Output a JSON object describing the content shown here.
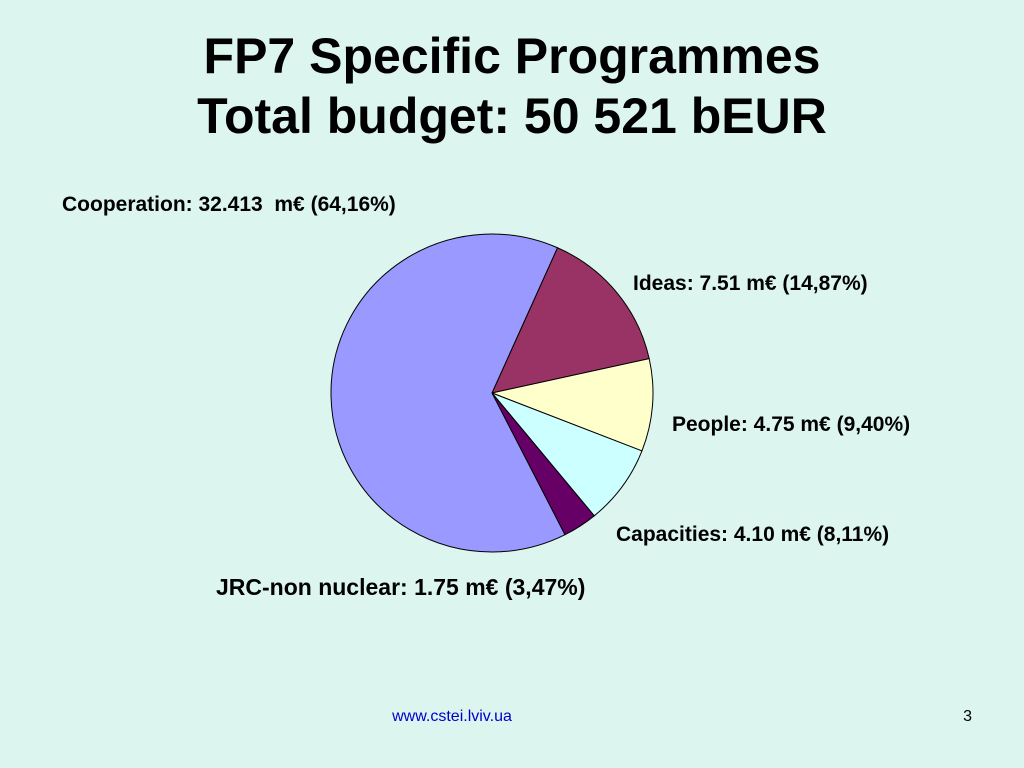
{
  "slide": {
    "title_line1": "FP7 Specific Programmes",
    "title_line2": "Total budget: 50 521 bEUR",
    "footer_url": "www.cstei.lviv.ua",
    "page_number": "3",
    "background_color": "#dcf5ee"
  },
  "chart_data": {
    "type": "pie",
    "title": "FP7 Specific Programmes Total budget: 50 521 bEUR",
    "unit": "m€",
    "slices": [
      {
        "name": "Ideas",
        "value": 7.51,
        "percent": 14.87,
        "label": "Ideas: 7.51 m€ (14,87%)",
        "color": "#993366"
      },
      {
        "name": "People",
        "value": 4.75,
        "percent": 9.4,
        "label": "People: 4.75 m€ (9,40%)",
        "color": "#ffffcc"
      },
      {
        "name": "Capacities",
        "value": 4.1,
        "percent": 8.11,
        "label": "Capacities: 4.10 m€ (8,11%)",
        "color": "#ccffff"
      },
      {
        "name": "JRC-non nuclear",
        "value": 1.75,
        "percent": 3.47,
        "label": "JRC-non nuclear: 1.75 m€ (3,47%)",
        "color": "#660066"
      },
      {
        "name": "Cooperation",
        "value": 32.413,
        "percent": 64.16,
        "label": "Cooperation: 32.413  m€ (64,16%)",
        "color": "#9999ff"
      }
    ]
  }
}
